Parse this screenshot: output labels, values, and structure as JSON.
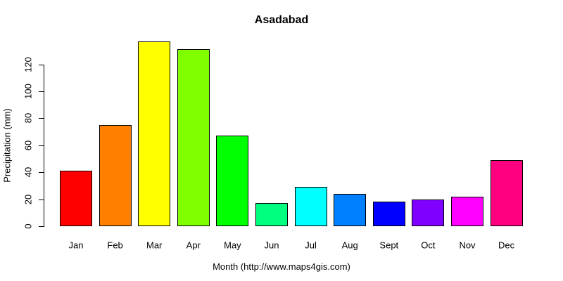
{
  "chart_data": {
    "type": "bar",
    "title": "Asadabad",
    "xlabel": "Month (http://www.maps4gis.com)",
    "ylabel": "Precipitation (mm)",
    "categories": [
      "Jan",
      "Feb",
      "Mar",
      "Apr",
      "May",
      "Jun",
      "Jul",
      "Aug",
      "Sept",
      "Oct",
      "Nov",
      "Dec"
    ],
    "values": [
      41,
      75,
      137,
      131,
      67,
      17,
      29,
      24,
      18,
      20,
      22,
      49
    ],
    "bar_colors": [
      "#FF0000",
      "#FF8000",
      "#FFFF00",
      "#80FF00",
      "#00FF00",
      "#00FF80",
      "#00FFFF",
      "#0080FF",
      "#0000FF",
      "#8000FF",
      "#FF00FF",
      "#FF0080"
    ],
    "bar_border_color": "#000000",
    "text_color": "#000000",
    "background_color": "#FFFFFF",
    "yticks": [
      0,
      20,
      40,
      60,
      80,
      100,
      120
    ],
    "ylim": [
      0,
      143
    ],
    "grid": false,
    "legend_position": "none"
  }
}
